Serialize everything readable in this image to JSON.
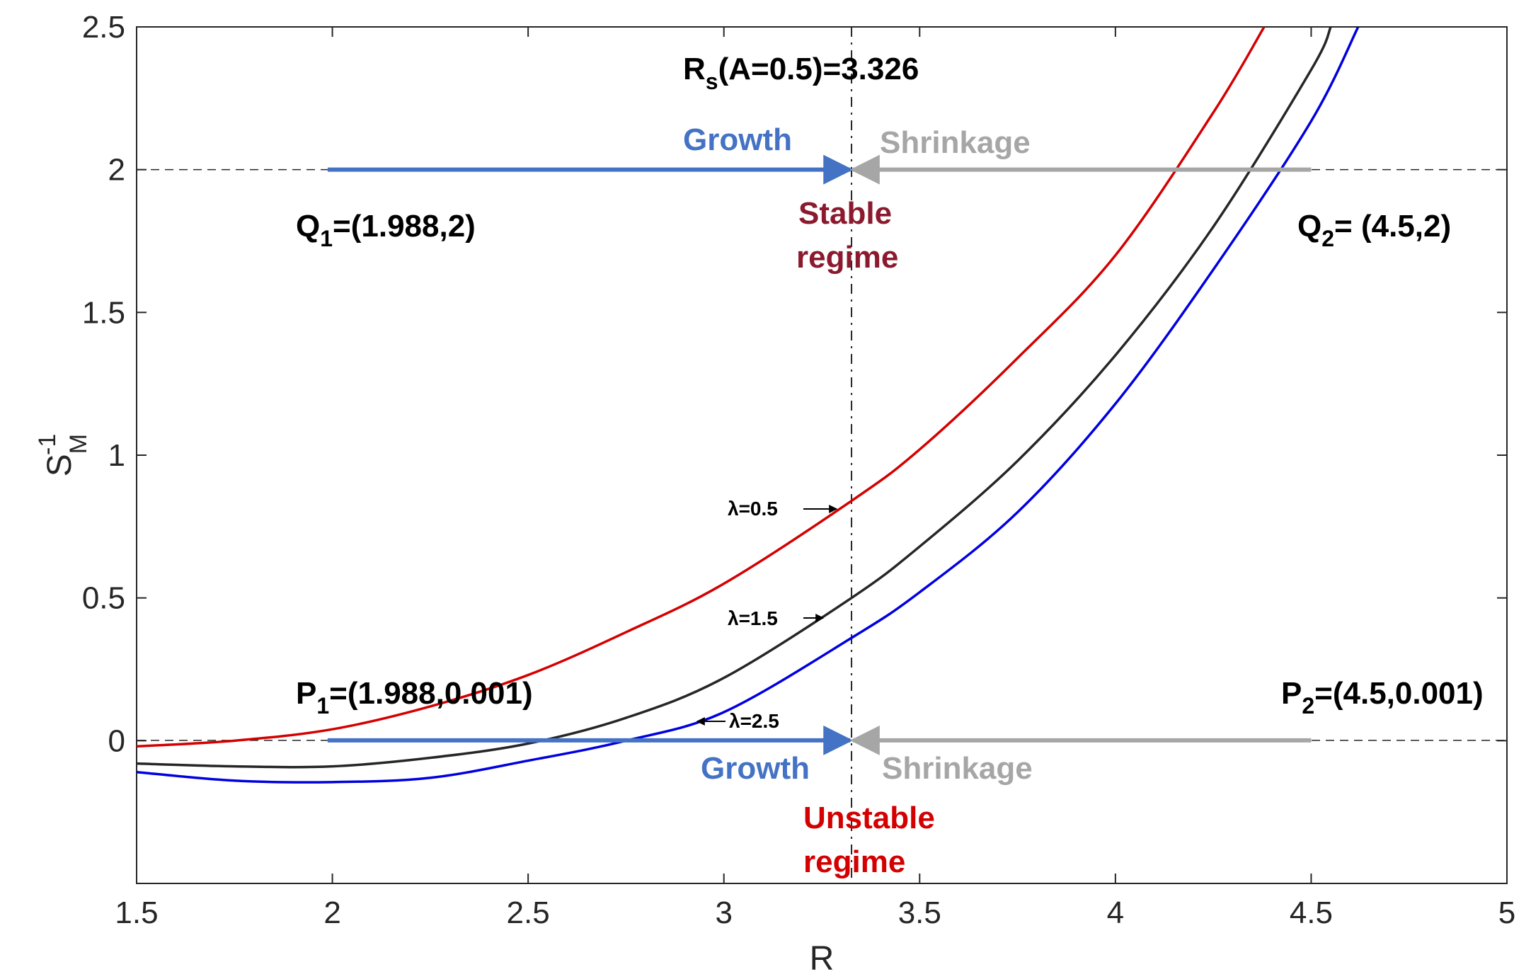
{
  "chart_data": {
    "type": "line",
    "title": "",
    "xlabel": "R",
    "ylabel": "S",
    "ylabel_sup": "-1",
    "ylabel_sub": "M",
    "xlim": [
      1.5,
      5
    ],
    "ylim": [
      -0.5,
      2.5
    ],
    "xticks": [
      "1.5",
      "2",
      "2.5",
      "3",
      "3.5",
      "4",
      "4.5",
      "5"
    ],
    "yticks": [
      "0",
      "0.5",
      "1",
      "1.5",
      "2",
      "2.5"
    ],
    "series": [
      {
        "name": "λ=0.5",
        "color": "#d40000",
        "x": [
          1.5,
          1.75,
          2.0,
          2.25,
          2.5,
          2.75,
          3.0,
          3.326,
          3.5,
          3.75,
          4.0,
          4.25,
          4.38
        ],
        "y": [
          -0.02,
          0.0,
          0.04,
          0.12,
          0.23,
          0.38,
          0.55,
          0.84,
          1.02,
          1.34,
          1.7,
          2.2,
          2.5
        ]
      },
      {
        "name": "λ=1.5",
        "color": "#262626",
        "x": [
          1.5,
          1.75,
          2.0,
          2.25,
          2.5,
          2.75,
          3.0,
          3.326,
          3.5,
          3.75,
          4.0,
          4.25,
          4.5,
          4.55
        ],
        "y": [
          -0.08,
          -0.09,
          -0.09,
          -0.06,
          -0.01,
          0.08,
          0.22,
          0.5,
          0.68,
          0.98,
          1.35,
          1.8,
          2.35,
          2.5
        ]
      },
      {
        "name": "λ=2.5",
        "color": "#0000e0",
        "x": [
          1.5,
          1.75,
          2.0,
          2.25,
          2.5,
          2.75,
          3.0,
          3.326,
          3.5,
          3.75,
          4.0,
          4.25,
          4.5,
          4.62
        ],
        "y": [
          -0.11,
          -0.14,
          -0.145,
          -0.13,
          -0.07,
          0.0,
          0.1,
          0.36,
          0.52,
          0.8,
          1.18,
          1.65,
          2.17,
          2.5
        ]
      }
    ],
    "vline": {
      "x": 3.326,
      "label_main": "R",
      "label_sub": "s",
      "label_rest": "(A=0.5)=3.326"
    },
    "hlines": [
      2,
      0.001
    ],
    "arrows": [
      {
        "label": "Growth",
        "color": "#4472c4",
        "x_from": 1.988,
        "x_to": 3.326,
        "y": 2
      },
      {
        "label": "Shrinkage",
        "color": "#a6a6a6",
        "x_from": 4.5,
        "x_to": 3.326,
        "y": 2
      },
      {
        "label": "Growth",
        "color": "#4472c4",
        "x_from": 1.988,
        "x_to": 3.326,
        "y": 0.001
      },
      {
        "label": "Shrinkage",
        "color": "#a6a6a6",
        "x_from": 4.5,
        "x_to": 3.326,
        "y": 0.001
      }
    ],
    "points": [
      {
        "main": "Q",
        "sub": "1",
        "rest": "=(1.988,2)"
      },
      {
        "main": "Q",
        "sub": "2",
        "rest": "= (4.5,2)"
      },
      {
        "main": "P",
        "sub": "1",
        "rest": "=(1.988,0.001)"
      },
      {
        "main": "P",
        "sub": "2",
        "rest": "=(4.5,0.001)"
      }
    ],
    "regimes": [
      {
        "line1": "Stable",
        "line2": "regime",
        "color": "#8b1a2e"
      },
      {
        "line1": "Unstable",
        "line2": "regime",
        "color": "#d40000"
      }
    ],
    "lambda_labels": [
      "λ=0.5",
      "λ=1.5",
      "λ=2.5"
    ]
  }
}
